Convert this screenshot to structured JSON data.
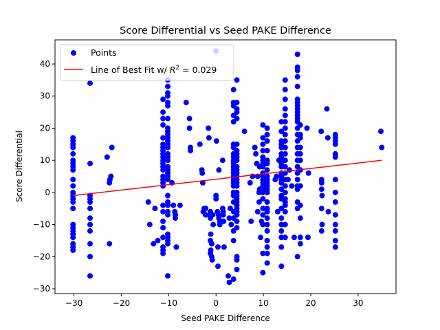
{
  "chart_data": {
    "type": "scatter",
    "title": "Score Differential vs Seed PAKE Difference",
    "xlabel": "Seed PAKE Difference",
    "ylabel": "Score Differential",
    "xlim": [
      -34,
      38
    ],
    "ylim": [
      -31.5,
      47.5
    ],
    "xticks": [
      -30,
      -20,
      -10,
      0,
      10,
      20,
      30
    ],
    "yticks": [
      -30,
      -20,
      -10,
      0,
      10,
      20,
      30,
      40
    ],
    "grid": false,
    "legend_position": "upper-left",
    "legend": {
      "points_label": "Points",
      "fit_label_prefix": "Line of Best Fit w/ ",
      "fit_label_r": "R",
      "fit_label_exp": "2",
      "fit_label_suffix": " = 0.029"
    },
    "colors": {
      "points": "#0000ff",
      "fit_line": "#ff0000"
    },
    "best_fit": {
      "x": [
        -30.2,
        35.0
      ],
      "y": [
        -1.0,
        10.0
      ],
      "r_squared": 0.029
    },
    "series": [
      {
        "name": "Points",
        "x": [
          -30.2,
          -30.2,
          -30.2,
          -30.2,
          -30.2,
          -30.2,
          -30.2,
          -30.2,
          -30.2,
          -30.2,
          -30.2,
          -30.2,
          -30.2,
          -30.2,
          -30.2,
          -30.2,
          -30.2,
          -30.2,
          -30.2,
          -30.2,
          -30.2,
          -30.2,
          -30.2,
          -30.2,
          -26.6,
          -26.6,
          -26.6,
          -26.6,
          -26.6,
          -26.6,
          -26.6,
          -26.6,
          -26.6,
          -26.6,
          -26.6,
          -26.6,
          -23.0,
          -22.5,
          -22.4,
          -22.2,
          -22.0,
          -22.5,
          -14.3,
          -14.0,
          -13.2,
          -12.9,
          -12.3,
          -11.2,
          -11.2,
          -11.2,
          -11.2,
          -11.2,
          -11.2,
          -11.2,
          -11.2,
          -11.2,
          -11.2,
          -11.2,
          -11.2,
          -11.2,
          -11.2,
          -11.2,
          -11.2,
          -11.2,
          -11.2,
          -11.2,
          -11.2,
          -11.2,
          -11.2,
          -11.2,
          -11.2,
          -11.2,
          -11.2,
          -10.2,
          -10.2,
          -10.2,
          -10.2,
          -10.2,
          -10.2,
          -10.2,
          -10.2,
          -10.2,
          -10.2,
          -10.2,
          -10.2,
          -10.2,
          -10.2,
          -10.2,
          -10.2,
          -10.2,
          -10.2,
          -10.2,
          -10.2,
          -10.2,
          -10.2,
          -10.2,
          -10.2,
          -10.2,
          -10.2,
          -10.2,
          -10.2,
          -10.2,
          -10.2,
          -10.2,
          -10.2,
          -9.3,
          -9.0,
          -8.7,
          -8.6,
          -8.6,
          -8.4,
          -7.6,
          -6.3,
          -5.6,
          -5.6,
          -5.4,
          -5.4,
          -3.4,
          -3.0,
          -2.9,
          -2.8,
          -2.7,
          -2.5,
          -2.2,
          -2.2,
          -1.6,
          -1.5,
          -1.2,
          -1.3,
          -1.2,
          -1.1,
          -1.2,
          -1.1,
          -1.2,
          -0.9,
          -0.8,
          -0.7,
          -0.6,
          -0.9,
          0.0,
          0.1,
          0.3,
          0.5,
          0.6,
          0.6,
          0.4,
          0.4,
          0.8,
          0.8,
          1.4,
          1.4,
          1.5,
          1.5,
          1.6,
          1.7,
          2.6,
          2.8,
          2.8,
          3.0,
          3.2,
          3.7,
          3.7,
          3.7,
          3.7,
          3.7,
          3.7,
          3.7,
          3.7,
          3.7,
          3.7,
          3.7,
          3.7,
          3.7,
          3.7,
          3.7,
          3.7,
          3.7,
          3.7,
          3.7,
          3.7,
          3.7,
          3.7,
          3.7,
          3.7,
          3.7,
          3.7,
          4.4,
          4.4,
          4.4,
          4.4,
          4.4,
          4.4,
          4.4,
          4.4,
          4.4,
          4.4,
          4.4,
          4.4,
          4.4,
          4.4,
          4.4,
          4.4,
          4.4,
          4.4,
          4.4,
          4.4,
          4.4,
          4.4,
          4.4,
          4.4,
          4.4,
          4.4,
          4.4,
          4.4,
          4.4,
          4.4,
          6.0,
          7.2,
          7.4,
          7.7,
          8.2,
          8.4,
          8.6,
          8.8,
          8.8,
          9.1,
          9.1,
          9.2,
          9.2,
          9.4,
          9.6,
          9.9,
          9.9,
          9.9,
          9.9,
          9.9,
          9.9,
          9.9,
          9.9,
          9.9,
          9.9,
          9.9,
          9.9,
          9.9,
          9.9,
          9.9,
          9.9,
          9.9,
          9.9,
          9.9,
          9.9,
          9.9,
          10.8,
          10.8,
          10.8,
          10.8,
          10.8,
          10.8,
          10.8,
          10.8,
          10.8,
          10.8,
          10.8,
          10.8,
          10.8,
          10.8,
          10.8,
          10.8,
          10.8,
          10.8,
          10.8,
          10.8,
          10.8,
          10.8,
          10.8,
          12.5,
          12.8,
          13.0,
          13.3,
          13.8,
          13.8,
          13.8,
          13.8,
          13.8,
          13.8,
          13.8,
          13.8,
          13.8,
          13.8,
          13.8,
          13.8,
          13.8,
          13.8,
          13.8,
          13.8,
          13.8,
          13.8,
          13.8,
          13.8,
          13.8,
          13.8,
          13.8,
          13.8,
          14.6,
          14.6,
          14.6,
          14.6,
          14.6,
          14.6,
          14.6,
          14.6,
          14.6,
          14.6,
          14.6,
          14.6,
          14.6,
          14.6,
          14.6,
          14.6,
          14.6,
          14.6,
          14.6,
          14.6,
          14.6,
          14.6,
          14.6,
          15.2,
          15.5,
          16.0,
          16.5,
          17.2,
          17.2,
          17.2,
          17.2,
          17.2,
          17.2,
          17.2,
          17.2,
          17.2,
          17.2,
          17.2,
          17.2,
          17.2,
          17.2,
          17.2,
          17.2,
          17.2,
          17.2,
          17.2,
          17.2,
          17.2,
          17.2,
          17.2,
          17.2,
          17.2,
          17.2,
          17.2,
          17.8,
          17.8,
          17.8,
          17.8,
          17.8,
          17.8,
          17.8,
          17.8,
          17.8,
          17.8,
          17.8,
          17.8,
          19.2,
          19.4,
          19.5,
          22.2,
          22.3,
          22.3,
          22.3,
          22.3,
          22.3,
          22.4,
          22.4,
          23.4,
          23.6,
          23.7,
          25.2,
          25.2,
          25.2,
          25.2,
          25.2,
          25.2,
          25.2,
          25.2,
          25.2,
          25.2,
          25.2,
          25.2,
          25.2,
          25.2,
          34.8,
          35.0,
          0.0,
          0.0
        ],
        "y": [
          17,
          16,
          15,
          14,
          12,
          10,
          9,
          8,
          7,
          4,
          2,
          0,
          -1,
          -2,
          -3,
          -5,
          -10,
          -11,
          -12,
          -13,
          -14,
          -16,
          -17,
          -18,
          34,
          9,
          -1,
          -2,
          -3,
          -5,
          -8,
          -10,
          -12,
          -20,
          -26,
          -16,
          11,
          3,
          4,
          5,
          14,
          -16,
          -3,
          -10,
          -16,
          -5,
          -15,
          29,
          25,
          23,
          21,
          17,
          15,
          14,
          13,
          12,
          11,
          10,
          9,
          8,
          7,
          5,
          4,
          3,
          2,
          -4,
          -6,
          -9,
          -11,
          -14,
          -17,
          -18,
          -19,
          35,
          33,
          31,
          30,
          28,
          27,
          23,
          20,
          19,
          18,
          17,
          16,
          15,
          14,
          12,
          11,
          10,
          8,
          7,
          6,
          5,
          4,
          -1,
          -3,
          -4,
          -6,
          -7,
          -13,
          -15,
          -16,
          -26,
          -14,
          3,
          -4,
          -6,
          -7,
          -8,
          -17,
          -4,
          28,
          23,
          20,
          14,
          13,
          15,
          7,
          6,
          3,
          -6,
          -5,
          -5,
          -7,
          20,
          17,
          -6,
          -7,
          -8,
          -13,
          -15,
          -18,
          -19,
          -20,
          -21,
          -7,
          -10,
          -16,
          44,
          16,
          -6,
          -7,
          7,
          -8,
          -17,
          -23,
          -9,
          -10,
          10,
          -5,
          -6,
          -7,
          -9,
          -17,
          -26,
          -28,
          -8,
          -5,
          -10,
          32,
          28,
          27,
          24,
          22,
          15,
          14,
          12,
          11,
          10,
          9,
          8,
          7,
          6,
          5,
          4,
          3,
          2,
          0,
          -1,
          -3,
          -6,
          -8,
          -12,
          -15,
          -27,
          35,
          28,
          26,
          25,
          23,
          15,
          13,
          12,
          11,
          10,
          8,
          7,
          6,
          5,
          4,
          3,
          2,
          0,
          -1,
          -2,
          -3,
          -4,
          -5,
          -6,
          -7,
          -9,
          -11,
          -20,
          -21,
          -24,
          19,
          3,
          -9,
          5,
          14,
          12,
          9,
          5,
          -6,
          0,
          -3,
          8,
          1,
          -14,
          -9,
          21,
          17,
          15,
          13,
          11,
          10,
          9,
          8,
          6,
          5,
          4,
          3,
          2,
          1,
          0,
          -2,
          -5,
          -7,
          -19,
          -25,
          -10,
          20,
          18,
          16,
          13,
          10,
          9,
          7,
          5,
          4,
          3,
          2,
          1,
          0,
          -3,
          -5,
          -6,
          -8,
          -10,
          -12,
          -15,
          -17,
          -19,
          -22,
          4,
          5,
          -6,
          10,
          22,
          19,
          16,
          15,
          14,
          12,
          11,
          10,
          9,
          8,
          6,
          5,
          4,
          3,
          1,
          -1,
          -2,
          -5,
          -8,
          -10,
          -12,
          -14,
          -17,
          -23,
          35,
          32,
          29,
          26,
          24,
          22,
          20,
          18,
          16,
          14,
          12,
          10,
          8,
          6,
          4,
          2,
          0,
          -2,
          -4,
          -6,
          -10,
          -14,
          -3,
          4,
          7,
          2,
          -14,
          43,
          39,
          38,
          36,
          33,
          29,
          28,
          27,
          26,
          25,
          24,
          23,
          22,
          20,
          18,
          16,
          14,
          12,
          10,
          8,
          6,
          4,
          2,
          1,
          -5,
          -20,
          -3,
          21,
          18,
          17,
          14,
          12,
          10,
          7,
          2,
          -4,
          -8,
          -14,
          -16,
          20,
          -14,
          6,
          19,
          4,
          3,
          1,
          -5,
          -12,
          -10,
          -1,
          26,
          17,
          -6,
          18,
          17,
          16,
          15,
          12,
          11,
          4,
          0,
          -3,
          -7,
          -10,
          -12,
          -15,
          -17,
          19,
          14,
          -1,
          -2
        ]
      }
    ]
  }
}
